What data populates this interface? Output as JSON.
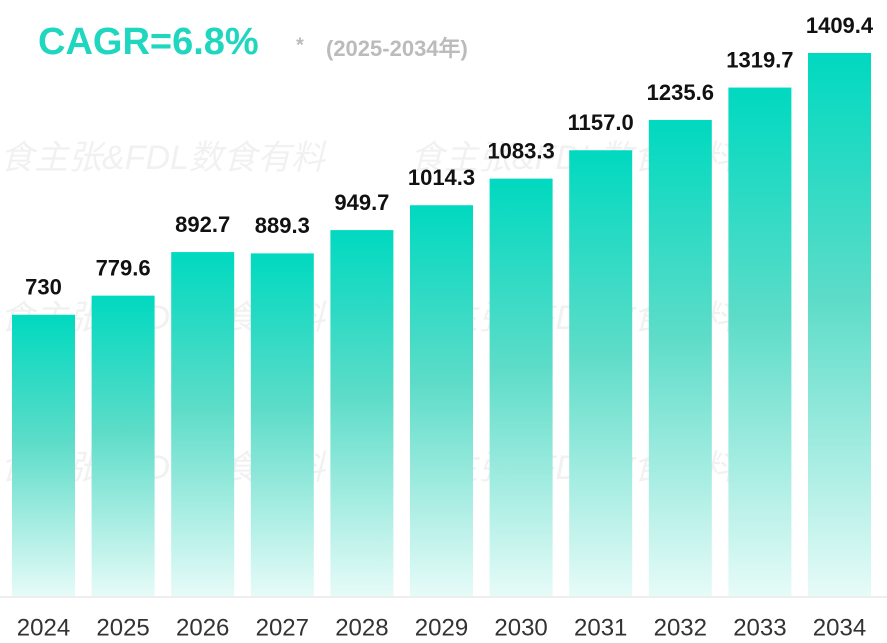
{
  "chart_data": {
    "type": "bar",
    "title": "CAGR=6.8%",
    "title_mark": "*",
    "subtitle": "(2025-2034年)",
    "watermark": "食主张&FDL数食有料",
    "categories": [
      "2024",
      "2025",
      "2026",
      "2027",
      "2028",
      "2029",
      "2030",
      "2031",
      "2032",
      "2033",
      "2034"
    ],
    "values": [
      730,
      779.6,
      892.7,
      889.3,
      949.7,
      1014.3,
      1083.3,
      1157.0,
      1235.6,
      1319.7,
      1409.4
    ],
    "value_labels": [
      "730",
      "779.6",
      "892.7",
      "889.3",
      "949.7",
      "1014.3",
      "1083.3",
      "1157.0",
      "1235.6",
      "1319.7",
      "1409.4"
    ],
    "color": "#00d9c0"
  }
}
